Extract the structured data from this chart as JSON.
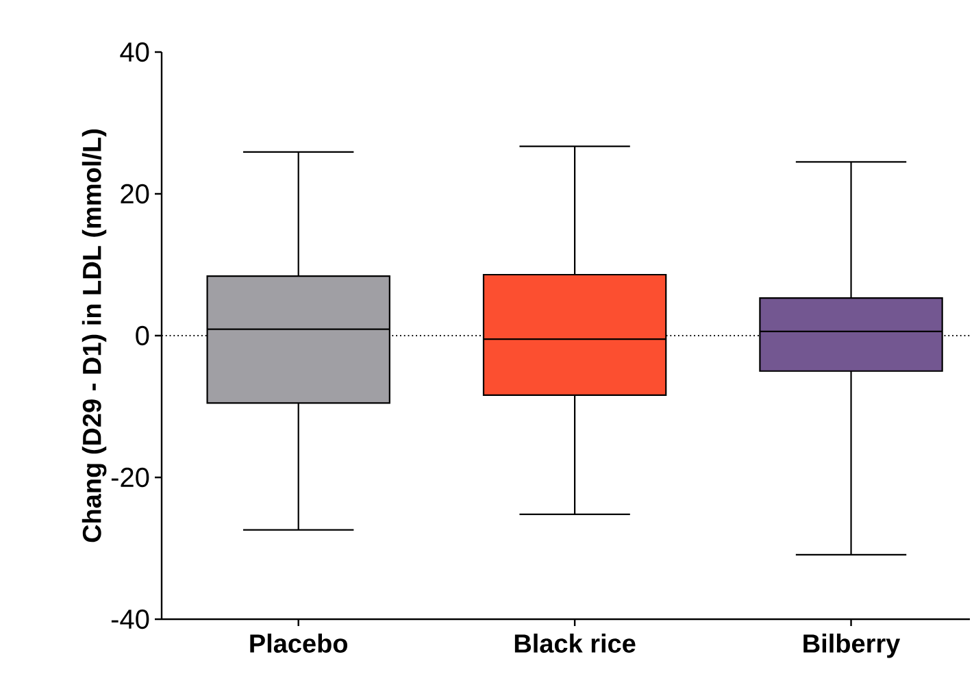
{
  "chart_data": {
    "type": "box",
    "ylabel": "Chang (D29 - D1) in LDL (mmol/L)",
    "categories": [
      "Placebo",
      "Black rice",
      "Bilberry"
    ],
    "colors": [
      "#a09fa4",
      "#fc4f30",
      "#735791"
    ],
    "boxes": [
      {
        "low": -27.4,
        "q1": -9.5,
        "median": 0.9,
        "q3": 8.4,
        "high": 25.9
      },
      {
        "low": -25.2,
        "q1": -8.4,
        "median": -0.5,
        "q3": 8.6,
        "high": 26.7
      },
      {
        "low": -30.9,
        "q1": -5.0,
        "median": 0.6,
        "q3": 5.3,
        "high": 24.5
      }
    ],
    "ylim": [
      -40,
      40
    ],
    "yticks": [
      -40,
      -20,
      0,
      20,
      40
    ],
    "ref_lines": [
      {
        "axis": "y",
        "value": 0,
        "line_style": "dotted"
      }
    ],
    "grid": false
  }
}
